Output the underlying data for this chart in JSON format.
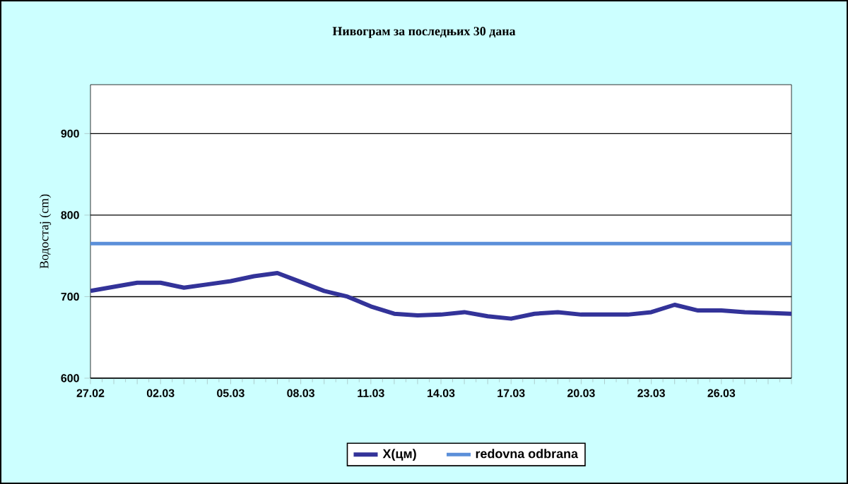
{
  "chart_data": {
    "type": "line",
    "title": "Нивограм за последњих 30 дана",
    "ylabel": "Водостај (cm)",
    "categories": [
      "27.02",
      null,
      null,
      "02.03",
      null,
      null,
      "05.03",
      null,
      null,
      "08.03",
      null,
      null,
      "11.03",
      null,
      null,
      "14.03",
      null,
      null,
      "17.03",
      null,
      null,
      "20.03",
      null,
      null,
      "23.03",
      null,
      null,
      "26.03",
      null,
      null,
      null
    ],
    "series": [
      {
        "name": "X(цм)",
        "color": "#333399",
        "values": [
          707,
          712,
          717,
          717,
          711,
          715,
          719,
          725,
          729,
          718,
          707,
          700,
          688,
          679,
          677,
          678,
          681,
          676,
          673,
          679,
          681,
          678,
          678,
          678,
          681,
          690,
          683,
          683,
          681,
          680,
          679
        ]
      }
    ],
    "ref_lines": [
      {
        "axis": "y",
        "value": 765,
        "label": "redovna odbrana",
        "color": "#5b8fd9"
      }
    ],
    "ylim": [
      600,
      960
    ],
    "yticks": [
      600,
      700,
      800,
      900
    ],
    "grid": "y",
    "legend": "bottom",
    "marker": "none",
    "line_style": "solid"
  }
}
